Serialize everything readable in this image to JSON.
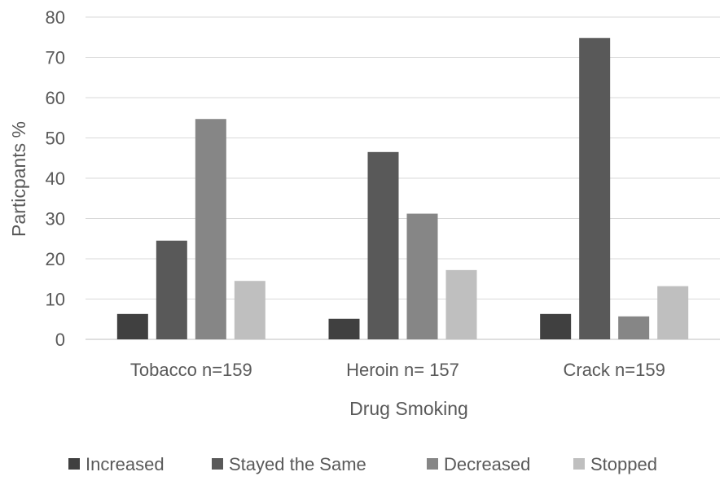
{
  "chart_data": {
    "type": "bar",
    "title": "",
    "xlabel": "Drug Smoking",
    "ylabel": "Particpants %",
    "ylim": [
      0,
      80
    ],
    "yticks": [
      0,
      10,
      20,
      30,
      40,
      50,
      60,
      70,
      80
    ],
    "grid": true,
    "legend_position": "bottom",
    "categories": [
      "Tobacco n=159",
      "Heroin n= 157",
      "Crack n=159"
    ],
    "series": [
      {
        "name": "Increased",
        "color": "#404040",
        "values": [
          6.3,
          5.1,
          6.3
        ]
      },
      {
        "name": "Stayed the Same",
        "color": "#595959",
        "values": [
          24.5,
          46.5,
          74.8
        ]
      },
      {
        "name": "Decreased",
        "color": "#868686",
        "values": [
          54.7,
          31.2,
          5.7
        ]
      },
      {
        "name": "Stopped",
        "color": "#bfbfbf",
        "values": [
          14.5,
          17.2,
          13.2
        ]
      }
    ]
  }
}
